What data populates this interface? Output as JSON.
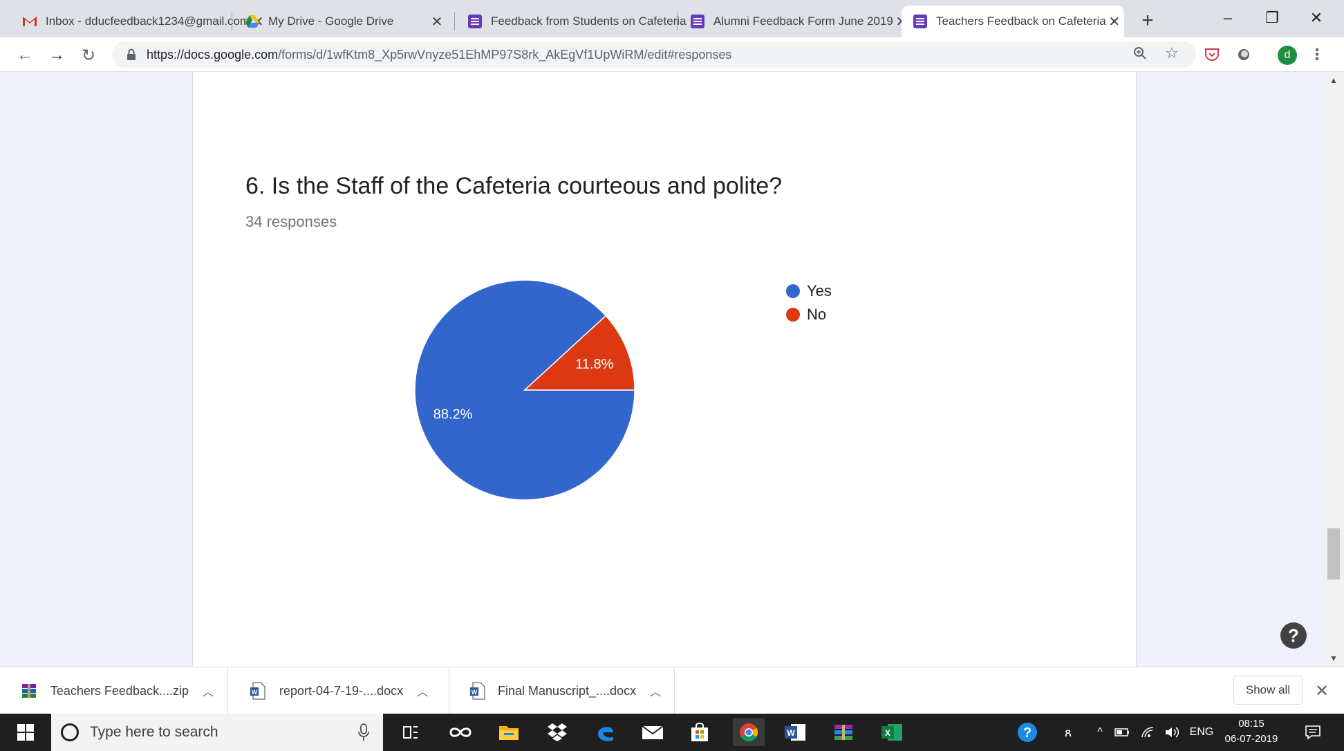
{
  "tabs": [
    {
      "label": "Inbox - dducfeedback1234@gmail.com",
      "icon": "gmail-icon"
    },
    {
      "label": "My Drive - Google Drive",
      "icon": "drive-icon"
    },
    {
      "label": "Feedback from Students on Cafeteria",
      "icon": "forms-icon"
    },
    {
      "label": "Alumni Feedback Form June 2019",
      "icon": "forms-icon"
    },
    {
      "label": "Teachers Feedback on Cafeteria",
      "icon": "forms-icon",
      "active": true
    }
  ],
  "new_tab": "+",
  "window_controls": {
    "minimize": "–",
    "restore": "❐",
    "close": "✕"
  },
  "address_bar": {
    "host": "https://docs.google.com",
    "path": "/forms/d/1wfKtm8_Xp5rwVnyze51EhMP97S8rk_AkEgVf1UpWiRM/edit#responses"
  },
  "profile_initial": "d",
  "question": {
    "title": "6. Is the Staff of the Cafeteria courteous and polite?",
    "responses": "34 responses"
  },
  "chart_data": {
    "type": "pie",
    "categories": [
      "Yes",
      "No"
    ],
    "values": [
      88.2,
      11.8
    ],
    "labels": [
      "88.2%",
      "11.8%"
    ],
    "colors": [
      "#3366cc",
      "#dc3912"
    ],
    "legend": "right"
  },
  "downloads": [
    {
      "name": "Teachers Feedback....zip",
      "icon": "winrar-icon"
    },
    {
      "name": "report-04-7-19-....docx",
      "icon": "word-doc-icon"
    },
    {
      "name": "Final Manuscript_....docx",
      "icon": "word-doc-icon"
    }
  ],
  "downloads_show_all": "Show all",
  "taskbar": {
    "search_placeholder": "Type here to search",
    "language": "ENG",
    "time": "08:15",
    "date": "06-07-2019"
  },
  "help": "?"
}
